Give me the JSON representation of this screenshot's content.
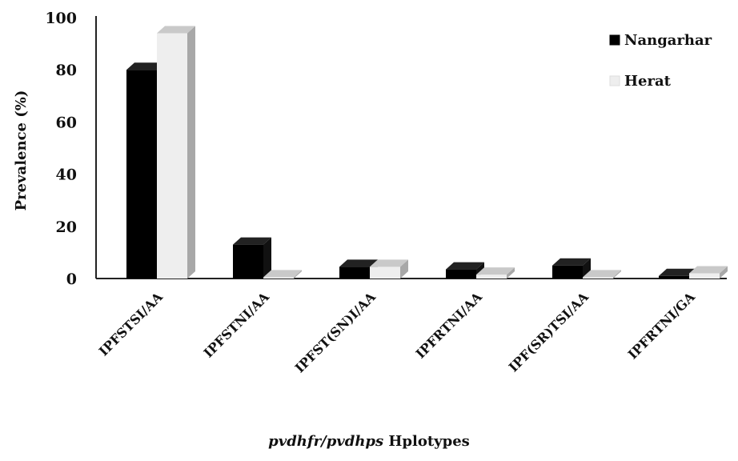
{
  "chart_data": {
    "type": "bar",
    "categories": [
      "IPFSTSI/AA",
      "IPFSTNI/AA",
      "IPFST(SN)I/AA",
      "IPFRTNI/AA",
      "IPF(SR)TSI/AA",
      "IPFRTNI/GA"
    ],
    "series": [
      {
        "name": "Nangarhar",
        "values": [
          80,
          13,
          4.5,
          3.5,
          5,
          1
        ],
        "color": "#000000"
      },
      {
        "name": "Herat",
        "values": [
          94,
          0.5,
          4.5,
          1.5,
          0.5,
          2
        ],
        "color": "#eeeeee"
      }
    ],
    "title": "",
    "xlabel_italic": "pvdhfr/pvdhps",
    "xlabel_rest": "Hplotypes",
    "ylabel": "Prevalence (%)",
    "ylim": [
      0,
      100
    ],
    "yticks": [
      "0",
      "20",
      "40",
      "60",
      "80",
      "100"
    ],
    "grid": false,
    "legend_position": "top-right"
  }
}
